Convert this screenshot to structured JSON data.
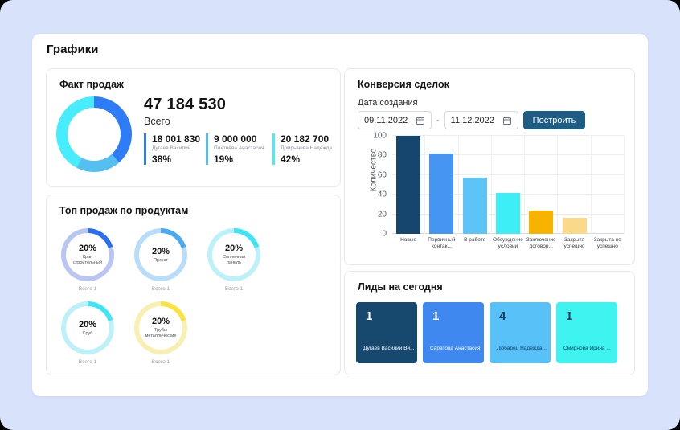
{
  "page": {
    "title": "Графики"
  },
  "fact_sales": {
    "title": "Факт продаж",
    "total_value": "47 184 530",
    "total_label": "Всего",
    "donut_segments": [
      {
        "name": "Дугаев Василий",
        "percent": 38,
        "color": "#2e7cf6"
      },
      {
        "name": "Плетнёва Анастасия",
        "percent": 19,
        "color": "#54c0f0"
      },
      {
        "name": "Домрычева Надежда",
        "percent": 42,
        "color": "#47ecfd"
      }
    ],
    "stats": [
      {
        "value": "18 001 830",
        "name": "Дугаев Василий",
        "percent": "38%",
        "color": "#2e7cf6"
      },
      {
        "value": "9 000 000",
        "name": "Плетнёва Анастасия",
        "percent": "19%",
        "color": "#54c0f0"
      },
      {
        "value": "20 182 700",
        "name": "Домрычева Надежда",
        "percent": "42%",
        "color": "#47ecfd"
      }
    ]
  },
  "top_products": {
    "title": "Топ продаж по продуктам",
    "items": [
      {
        "percent_label": "20%",
        "percent": 20,
        "name": "Кран строительный",
        "total": "Всего 1",
        "arc_color": "#2b6df2",
        "ring_color": "#b9c6f2"
      },
      {
        "percent_label": "20%",
        "percent": 20,
        "name": "Прокат",
        "total": "Всего 1",
        "arc_color": "#46aaf4",
        "ring_color": "#b7ddfa"
      },
      {
        "percent_label": "20%",
        "percent": 20,
        "name": "Солнечная панель",
        "total": "Всего 1",
        "arc_color": "#3ce6f4",
        "ring_color": "#bdf1f9"
      },
      {
        "percent_label": "20%",
        "percent": 20,
        "name": "Сруб",
        "total": "Всего 1",
        "arc_color": "#3ce6f4",
        "ring_color": "#bdf1f9"
      },
      {
        "percent_label": "20%",
        "percent": 20,
        "name": "Трубы металлические",
        "total": "Всего 1",
        "arc_color": "#fce23e",
        "ring_color": "#f8f0b0"
      }
    ]
  },
  "conversion": {
    "title": "Конверсия сделок",
    "date_label": "Дата создания",
    "date_from": "09.11.2022",
    "date_separator": "-",
    "date_to": "11.12.2022",
    "build_button": "Построить"
  },
  "chart_data": {
    "type": "bar",
    "title": "Конверсия сделок",
    "categories": [
      "Новые",
      "Первичный контак...",
      "В работе",
      "Обсуждение условий",
      "Заключение договор...",
      "Закрыта успешно",
      "Закрыта не успешно"
    ],
    "values": [
      100,
      82,
      57,
      42,
      24,
      16,
      0
    ],
    "colors": [
      "#16466e",
      "#4795f2",
      "#5cc4f7",
      "#3deef7",
      "#f8b301",
      "#fbd98b",
      "#fbd98b"
    ],
    "xlabel": "",
    "ylabel": "Количество",
    "yticks": [
      0,
      20,
      40,
      60,
      80,
      100
    ],
    "ylim": [
      0,
      100
    ],
    "grid": true,
    "legend": false
  },
  "leads": {
    "title": "Лиды на сегодня",
    "cards": [
      {
        "count": "1",
        "name": "Дугаев Василий Ви...",
        "bg": "#17486d",
        "text_color": "#ffffff"
      },
      {
        "count": "1",
        "name": "Саратова Анастасия...",
        "bg": "#3e88ef",
        "text_color": "#ffffff"
      },
      {
        "count": "4",
        "name": "Любарец Надежда...",
        "bg": "#57c1f8",
        "text_color": "#113a5c"
      },
      {
        "count": "1",
        "name": "Смирнова Ирина ...",
        "bg": "#3ff3f0",
        "text_color": "#113a5c"
      }
    ]
  }
}
